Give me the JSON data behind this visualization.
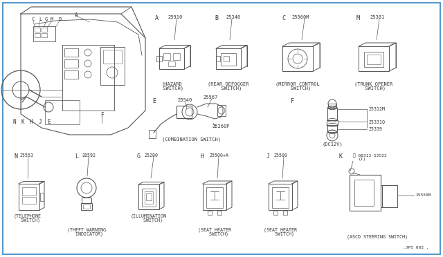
{
  "background_color": "#ffffff",
  "border_color": "#5599cc",
  "line_color": "#555555",
  "text_color": "#333333",
  "footnote": ".JP5 003 .",
  "f_parts": [
    "25312M",
    "25331Q",
    "25339"
  ]
}
